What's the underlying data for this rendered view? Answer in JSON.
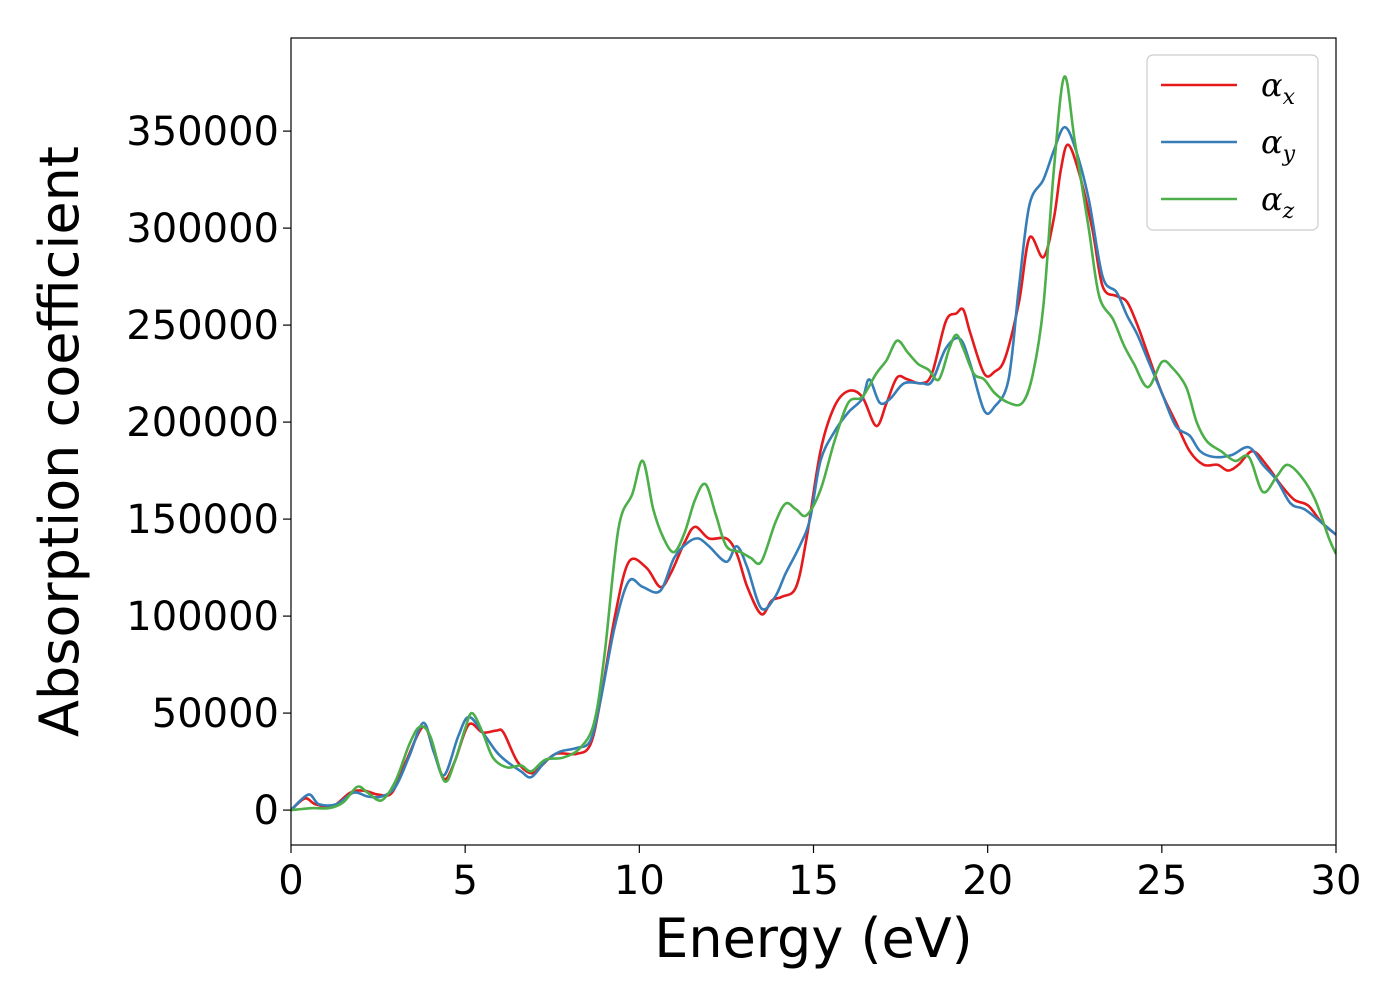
{
  "chart_data": {
    "type": "line",
    "title": "",
    "xlabel": "Energy (eV)",
    "ylabel": "Absorption coefficient",
    "xlim": [
      0,
      30
    ],
    "ylim": [
      -18000,
      398000
    ],
    "x_ticks": [
      0,
      5,
      10,
      15,
      20,
      25,
      30
    ],
    "y_ticks": [
      0,
      50000,
      100000,
      150000,
      200000,
      250000,
      300000,
      350000
    ],
    "grid": false,
    "legend_position": "top-right",
    "series": [
      {
        "name": "αx",
        "label_base": "α",
        "label_sub": "x",
        "color": "#e41a1c",
        "points": [
          [
            0,
            0
          ],
          [
            0.4,
            6000
          ],
          [
            0.7,
            3000
          ],
          [
            1.2,
            2000
          ],
          [
            1.7,
            9000
          ],
          [
            2.1,
            10000
          ],
          [
            2.5,
            8000
          ],
          [
            2.9,
            9000
          ],
          [
            3.3,
            25000
          ],
          [
            3.8,
            43000
          ],
          [
            4.1,
            30000
          ],
          [
            4.4,
            16000
          ],
          [
            4.7,
            25000
          ],
          [
            5.1,
            44000
          ],
          [
            5.5,
            40000
          ],
          [
            5.9,
            41000
          ],
          [
            6.1,
            40000
          ],
          [
            6.5,
            25000
          ],
          [
            6.9,
            19000
          ],
          [
            7.2,
            23000
          ],
          [
            7.6,
            29000
          ],
          [
            8.2,
            29000
          ],
          [
            8.6,
            34000
          ],
          [
            8.9,
            58000
          ],
          [
            9.3,
            100000
          ],
          [
            9.7,
            128000
          ],
          [
            10.2,
            125000
          ],
          [
            10.6,
            115000
          ],
          [
            10.9,
            122000
          ],
          [
            11.3,
            138000
          ],
          [
            11.6,
            146000
          ],
          [
            12.0,
            140000
          ],
          [
            12.5,
            140000
          ],
          [
            12.8,
            132000
          ],
          [
            13.1,
            115000
          ],
          [
            13.5,
            101000
          ],
          [
            13.8,
            108000
          ],
          [
            14.1,
            110000
          ],
          [
            14.5,
            115000
          ],
          [
            14.8,
            140000
          ],
          [
            15.2,
            185000
          ],
          [
            15.6,
            208000
          ],
          [
            16.0,
            216000
          ],
          [
            16.4,
            213000
          ],
          [
            16.8,
            198000
          ],
          [
            17.1,
            210000
          ],
          [
            17.4,
            223000
          ],
          [
            17.7,
            222000
          ],
          [
            18.1,
            220000
          ],
          [
            18.4,
            225000
          ],
          [
            18.8,
            252000
          ],
          [
            19.1,
            256000
          ],
          [
            19.3,
            258000
          ],
          [
            19.5,
            246000
          ],
          [
            19.9,
            225000
          ],
          [
            20.2,
            226000
          ],
          [
            20.5,
            233000
          ],
          [
            20.9,
            262000
          ],
          [
            21.2,
            295000
          ],
          [
            21.6,
            285000
          ],
          [
            21.9,
            305000
          ],
          [
            22.1,
            330000
          ],
          [
            22.3,
            343000
          ],
          [
            22.6,
            330000
          ],
          [
            23.0,
            300000
          ],
          [
            23.3,
            270000
          ],
          [
            23.7,
            265000
          ],
          [
            24.0,
            262000
          ],
          [
            24.3,
            250000
          ],
          [
            24.6,
            235000
          ],
          [
            25.0,
            215000
          ],
          [
            25.4,
            200000
          ],
          [
            25.8,
            185000
          ],
          [
            26.2,
            178000
          ],
          [
            26.6,
            178000
          ],
          [
            26.9,
            175000
          ],
          [
            27.2,
            178000
          ],
          [
            27.6,
            185000
          ],
          [
            28.0,
            178000
          ],
          [
            28.4,
            168000
          ],
          [
            28.8,
            160000
          ],
          [
            29.2,
            157000
          ],
          [
            29.6,
            148000
          ],
          [
            30.0,
            142000
          ]
        ]
      },
      {
        "name": "αy",
        "label_base": "α",
        "label_sub": "y",
        "color": "#377eb8",
        "points": [
          [
            0,
            0
          ],
          [
            0.5,
            8000
          ],
          [
            0.8,
            3000
          ],
          [
            1.3,
            3000
          ],
          [
            1.8,
            9000
          ],
          [
            2.2,
            7000
          ],
          [
            2.6,
            7000
          ],
          [
            3.0,
            12000
          ],
          [
            3.4,
            28000
          ],
          [
            3.8,
            45000
          ],
          [
            4.1,
            30000
          ],
          [
            4.4,
            18000
          ],
          [
            4.8,
            38000
          ],
          [
            5.1,
            48000
          ],
          [
            5.5,
            40000
          ],
          [
            5.9,
            30000
          ],
          [
            6.2,
            25000
          ],
          [
            6.6,
            20000
          ],
          [
            6.9,
            17000
          ],
          [
            7.3,
            25000
          ],
          [
            7.7,
            30000
          ],
          [
            8.2,
            32000
          ],
          [
            8.6,
            36000
          ],
          [
            8.9,
            58000
          ],
          [
            9.3,
            95000
          ],
          [
            9.7,
            118000
          ],
          [
            10.1,
            115000
          ],
          [
            10.6,
            113000
          ],
          [
            11.0,
            130000
          ],
          [
            11.4,
            138000
          ],
          [
            11.7,
            140000
          ],
          [
            12.0,
            136000
          ],
          [
            12.5,
            128000
          ],
          [
            12.8,
            136000
          ],
          [
            13.1,
            125000
          ],
          [
            13.5,
            104000
          ],
          [
            13.9,
            110000
          ],
          [
            14.2,
            122000
          ],
          [
            14.6,
            136000
          ],
          [
            14.9,
            150000
          ],
          [
            15.2,
            180000
          ],
          [
            15.6,
            195000
          ],
          [
            16.0,
            205000
          ],
          [
            16.4,
            212000
          ],
          [
            16.6,
            222000
          ],
          [
            16.9,
            210000
          ],
          [
            17.2,
            212000
          ],
          [
            17.6,
            220000
          ],
          [
            18.1,
            220000
          ],
          [
            18.4,
            221000
          ],
          [
            18.8,
            238000
          ],
          [
            19.2,
            243000
          ],
          [
            19.5,
            230000
          ],
          [
            19.9,
            206000
          ],
          [
            20.2,
            208000
          ],
          [
            20.6,
            222000
          ],
          [
            20.9,
            270000
          ],
          [
            21.2,
            312000
          ],
          [
            21.6,
            325000
          ],
          [
            21.9,
            340000
          ],
          [
            22.2,
            352000
          ],
          [
            22.5,
            342000
          ],
          [
            22.9,
            315000
          ],
          [
            23.3,
            275000
          ],
          [
            23.7,
            267000
          ],
          [
            24.0,
            255000
          ],
          [
            24.3,
            245000
          ],
          [
            24.6,
            232000
          ],
          [
            25.0,
            215000
          ],
          [
            25.4,
            198000
          ],
          [
            25.8,
            193000
          ],
          [
            26.1,
            185000
          ],
          [
            26.5,
            182000
          ],
          [
            27.0,
            183000
          ],
          [
            27.5,
            187000
          ],
          [
            27.9,
            178000
          ],
          [
            28.3,
            170000
          ],
          [
            28.7,
            158000
          ],
          [
            29.1,
            155000
          ],
          [
            29.6,
            148000
          ],
          [
            30.0,
            142000
          ]
        ]
      },
      {
        "name": "αz",
        "label_base": "α",
        "label_sub": "z",
        "color": "#4daf4a",
        "points": [
          [
            0,
            0
          ],
          [
            0.6,
            1000
          ],
          [
            1.1,
            1000
          ],
          [
            1.5,
            4000
          ],
          [
            1.9,
            12000
          ],
          [
            2.2,
            9000
          ],
          [
            2.6,
            5000
          ],
          [
            3.0,
            15000
          ],
          [
            3.4,
            34000
          ],
          [
            3.7,
            43000
          ],
          [
            4.0,
            38000
          ],
          [
            4.4,
            15000
          ],
          [
            4.7,
            25000
          ],
          [
            5.0,
            42000
          ],
          [
            5.2,
            50000
          ],
          [
            5.5,
            40000
          ],
          [
            5.8,
            27000
          ],
          [
            6.2,
            22000
          ],
          [
            6.6,
            23000
          ],
          [
            6.9,
            20000
          ],
          [
            7.3,
            26000
          ],
          [
            7.8,
            27000
          ],
          [
            8.3,
            32000
          ],
          [
            8.7,
            45000
          ],
          [
            9.0,
            80000
          ],
          [
            9.4,
            145000
          ],
          [
            9.8,
            163000
          ],
          [
            10.1,
            180000
          ],
          [
            10.4,
            155000
          ],
          [
            10.7,
            140000
          ],
          [
            11.0,
            133000
          ],
          [
            11.3,
            143000
          ],
          [
            11.6,
            160000
          ],
          [
            11.9,
            168000
          ],
          [
            12.2,
            152000
          ],
          [
            12.5,
            136000
          ],
          [
            12.9,
            133000
          ],
          [
            13.2,
            130000
          ],
          [
            13.5,
            128000
          ],
          [
            13.9,
            148000
          ],
          [
            14.2,
            158000
          ],
          [
            14.5,
            155000
          ],
          [
            14.8,
            152000
          ],
          [
            15.2,
            165000
          ],
          [
            15.6,
            190000
          ],
          [
            16.0,
            210000
          ],
          [
            16.4,
            213000
          ],
          [
            16.8,
            225000
          ],
          [
            17.1,
            232000
          ],
          [
            17.4,
            242000
          ],
          [
            17.7,
            236000
          ],
          [
            18.0,
            230000
          ],
          [
            18.3,
            227000
          ],
          [
            18.6,
            222000
          ],
          [
            18.9,
            238000
          ],
          [
            19.1,
            245000
          ],
          [
            19.3,
            238000
          ],
          [
            19.6,
            225000
          ],
          [
            19.9,
            222000
          ],
          [
            20.2,
            215000
          ],
          [
            20.6,
            210000
          ],
          [
            21.0,
            210000
          ],
          [
            21.3,
            225000
          ],
          [
            21.6,
            260000
          ],
          [
            21.9,
            330000
          ],
          [
            22.2,
            378000
          ],
          [
            22.5,
            345000
          ],
          [
            22.9,
            300000
          ],
          [
            23.2,
            265000
          ],
          [
            23.6,
            253000
          ],
          [
            23.9,
            240000
          ],
          [
            24.2,
            230000
          ],
          [
            24.6,
            218000
          ],
          [
            25.0,
            231000
          ],
          [
            25.3,
            228000
          ],
          [
            25.7,
            218000
          ],
          [
            26.0,
            200000
          ],
          [
            26.3,
            190000
          ],
          [
            26.7,
            185000
          ],
          [
            27.1,
            180000
          ],
          [
            27.5,
            182000
          ],
          [
            27.9,
            164000
          ],
          [
            28.3,
            172000
          ],
          [
            28.6,
            178000
          ],
          [
            29.0,
            172000
          ],
          [
            29.4,
            160000
          ],
          [
            29.8,
            140000
          ],
          [
            30.0,
            132000
          ]
        ]
      }
    ]
  }
}
